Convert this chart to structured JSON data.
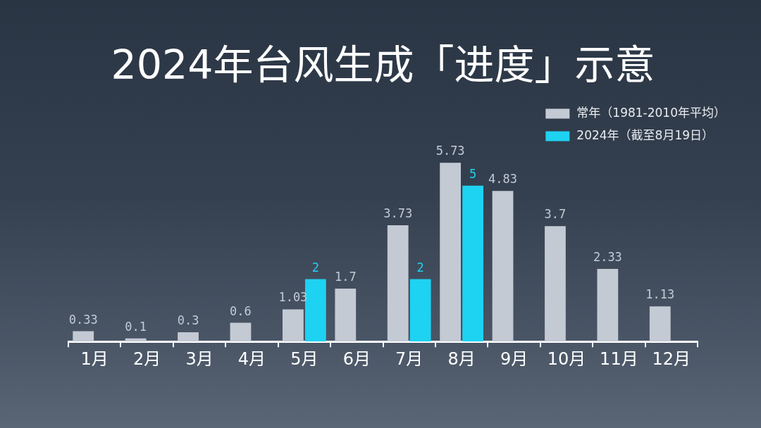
{
  "chart_data": {
    "type": "bar",
    "title": "2024年台风生成「进度」示意",
    "categories": [
      "1月",
      "2月",
      "3月",
      "4月",
      "5月",
      "6月",
      "7月",
      "8月",
      "9月",
      "10月",
      "11月",
      "12月"
    ],
    "series": [
      {
        "name": "常年（1981-2010年平均）",
        "color": "#c4cad4",
        "values": [
          0.33,
          0.1,
          0.3,
          0.6,
          1.03,
          1.7,
          3.73,
          5.73,
          4.83,
          3.7,
          2.33,
          1.13
        ]
      },
      {
        "name": "2024年（截至8月19日）",
        "color": "#1ed2f2",
        "values": [
          null,
          null,
          null,
          null,
          2,
          null,
          2,
          5,
          null,
          null,
          null,
          null
        ]
      }
    ],
    "data_labels": true,
    "legend": "top right"
  }
}
